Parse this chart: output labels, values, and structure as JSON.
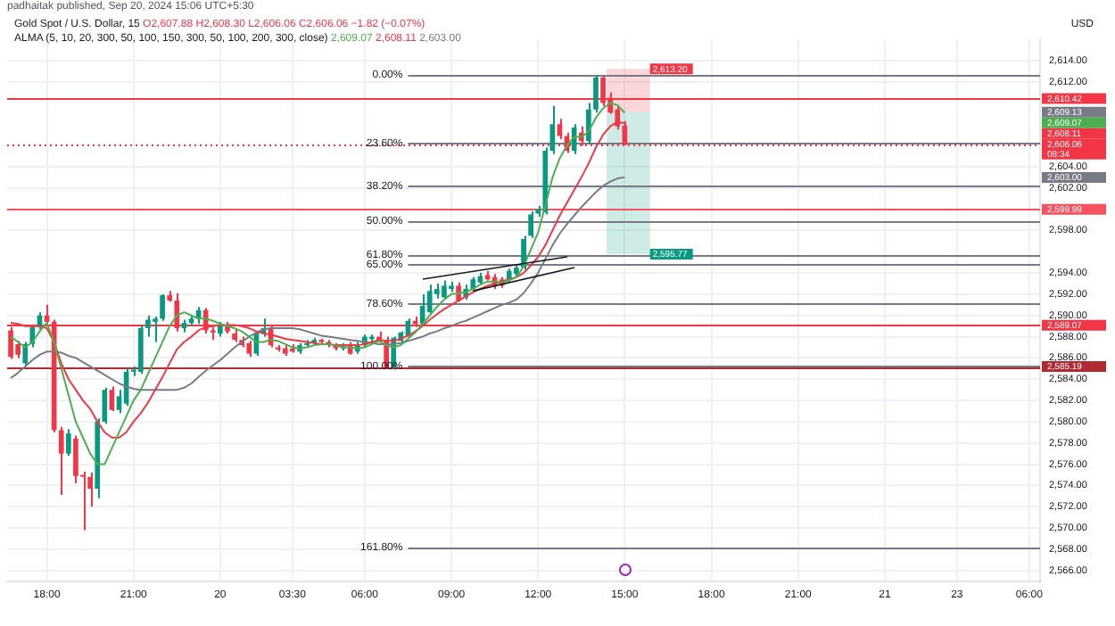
{
  "chart_data": {
    "type": "candlestick",
    "title": "Gold Spot / U.S. Dollar, 15",
    "subtitle": "O2,607.88 H2,608.30 L2,606.06 C2,606.06 −1.82 (−0.07%)",
    "annotations": [
      "padhaitak published, Sep 20, 2024 15:06 UTC+5:30",
      "ALMA (5, 10, 20, 300, 50, 100, 150, 300, 50, 100, 200, 300, close)",
      "USD",
      "2,609.13",
      "0.00%",
      "23.60%",
      "38.20%",
      "50.00%",
      "61.80%",
      "65.00%",
      "78.60%",
      "100.00%",
      "161.80%",
      "2,609.07",
      "2,608.11",
      "2,603.00"
    ],
    "categories": [
      null,
      null,
      null,
      null,
      null,
      "18:00",
      null,
      null,
      null,
      null,
      null,
      null,
      null,
      null,
      null,
      null,
      null,
      "21:00",
      null,
      null,
      null,
      null,
      null,
      null,
      null,
      null,
      null,
      null,
      null,
      "20",
      null,
      null,
      null,
      null,
      null,
      null,
      null,
      null,
      null,
      "03:30",
      null,
      null,
      null,
      null,
      null,
      null,
      null,
      null,
      null,
      "06:00",
      null,
      null,
      null,
      null,
      null,
      null,
      null,
      null,
      null,
      null,
      null,
      "09:00",
      null,
      null,
      null,
      null,
      null,
      null,
      null,
      null,
      null,
      null,
      null,
      "12:00",
      null,
      null,
      null,
      null,
      null,
      null,
      null,
      null,
      null,
      null,
      null,
      "15:00",
      null,
      null,
      null,
      null,
      null,
      null,
      null,
      null,
      null,
      null,
      null,
      "18:00",
      null,
      null,
      null,
      null,
      null,
      null,
      null,
      null,
      null,
      null,
      null,
      "21:00",
      null,
      null,
      null,
      null,
      null,
      null,
      null,
      null,
      null,
      null,
      null,
      "21",
      null,
      null,
      null,
      null,
      null,
      null,
      null,
      null,
      null,
      "23",
      null,
      null,
      null,
      null,
      null,
      null,
      null,
      null,
      null,
      "06:00",
      null
    ],
    "ohlc": [
      [
        2588.6,
        2588.9,
        2585.9,
        2586.1
      ],
      [
        2587.3,
        2587.6,
        2586.0,
        2586.3
      ],
      [
        2585.5,
        2587.5,
        2585.3,
        2587.3
      ],
      [
        2587.3,
        2589.0,
        2587.0,
        2588.9
      ],
      [
        2588.9,
        2590.3,
        2588.7,
        2590.0
      ],
      [
        2590.0,
        2591.0,
        2589.3,
        2589.4
      ],
      [
        2589.4,
        2589.6,
        2579.0,
        2579.2
      ],
      [
        2579.2,
        2579.5,
        2573.1,
        2577.0
      ],
      [
        2577.0,
        2579.3,
        2576.8,
        2578.9
      ],
      [
        2578.4,
        2578.7,
        2574.2,
        2574.9
      ],
      [
        2575.0,
        2575.3,
        2569.8,
        2574.8
      ],
      [
        2574.8,
        2575.2,
        2572.0,
        2573.7
      ],
      [
        2573.7,
        2580.3,
        2572.8,
        2580.0
      ],
      [
        2580.0,
        2583.2,
        2579.8,
        2583.0
      ],
      [
        2583.0,
        2583.3,
        2581.0,
        2581.1
      ],
      [
        2581.1,
        2583.0,
        2580.8,
        2582.4
      ],
      [
        2581.7,
        2585.0,
        2581.5,
        2584.7
      ],
      [
        2584.7,
        2585.2,
        2584.3,
        2584.9
      ],
      [
        2584.7,
        2589.1,
        2584.5,
        2588.8
      ],
      [
        2588.8,
        2590.0,
        2588.0,
        2589.6
      ],
      [
        2589.4,
        2589.9,
        2587.5,
        2589.7
      ],
      [
        2589.7,
        2592.0,
        2589.5,
        2591.9
      ],
      [
        2591.9,
        2592.3,
        2591.3,
        2591.4
      ],
      [
        2591.4,
        2592.1,
        2588.5,
        2588.8
      ],
      [
        2588.8,
        2589.6,
        2588.4,
        2589.3
      ],
      [
        2589.3,
        2589.9,
        2589.0,
        2589.7
      ],
      [
        2589.7,
        2590.8,
        2589.2,
        2590.5
      ],
      [
        2590.5,
        2590.7,
        2588.3,
        2588.6
      ],
      [
        2588.6,
        2588.9,
        2587.7,
        2588.4
      ],
      [
        2588.3,
        2589.4,
        2588.0,
        2589.0
      ],
      [
        2589.0,
        2589.4,
        2588.3,
        2588.5
      ],
      [
        2588.3,
        2588.7,
        2587.5,
        2587.7
      ],
      [
        2587.7,
        2588.0,
        2587.0,
        2587.2
      ],
      [
        2587.4,
        2587.6,
        2586.1,
        2586.4
      ],
      [
        2586.4,
        2588.5,
        2586.2,
        2588.3
      ],
      [
        2588.3,
        2589.7,
        2588.0,
        2588.8
      ],
      [
        2588.8,
        2589.0,
        2587.0,
        2587.2
      ],
      [
        2587.0,
        2587.2,
        2586.6,
        2586.8
      ],
      [
        2586.9,
        2587.2,
        2586.2,
        2586.4
      ],
      [
        2586.9,
        2587.3,
        2586.5,
        2586.6
      ],
      [
        2586.6,
        2587.4,
        2586.4,
        2587.2
      ],
      [
        2587.2,
        2587.7,
        2587.0,
        2587.4
      ],
      [
        2587.4,
        2587.9,
        2587.2,
        2587.7
      ],
      [
        2587.7,
        2587.8,
        2587.3,
        2587.5
      ],
      [
        2587.5,
        2587.7,
        2587.0,
        2587.2
      ],
      [
        2587.2,
        2587.4,
        2586.7,
        2586.9
      ],
      [
        2586.9,
        2587.4,
        2586.7,
        2587.2
      ],
      [
        2587.2,
        2587.5,
        2586.3,
        2586.4
      ],
      [
        2586.6,
        2587.5,
        2586.4,
        2587.2
      ],
      [
        2587.2,
        2588.2,
        2587.0,
        2588.0
      ],
      [
        2587.8,
        2588.2,
        2587.5,
        2588.0
      ],
      [
        2588.0,
        2588.5,
        2587.5,
        2587.7
      ],
      [
        2587.7,
        2588.0,
        2585.0,
        2585.1
      ],
      [
        2585.1,
        2588.0,
        2584.9,
        2587.9
      ],
      [
        2587.6,
        2588.5,
        2587.4,
        2588.4
      ],
      [
        2588.1,
        2589.7,
        2587.9,
        2589.5
      ],
      [
        2589.5,
        2589.9,
        2588.9,
        2589.2
      ],
      [
        2589.2,
        2592.0,
        2589.0,
        2590.9
      ],
      [
        2590.3,
        2592.9,
        2590.1,
        2592.3
      ],
      [
        2592.0,
        2593.0,
        2591.6,
        2592.5
      ],
      [
        2591.7,
        2593.3,
        2591.5,
        2592.8
      ],
      [
        2592.5,
        2593.2,
        2592.2,
        2592.8
      ],
      [
        2592.8,
        2593.1,
        2591.3,
        2591.4
      ],
      [
        2591.7,
        2592.9,
        2591.5,
        2592.5
      ],
      [
        2592.5,
        2593.6,
        2592.2,
        2593.4
      ],
      [
        2593.1,
        2594.0,
        2592.9,
        2593.7
      ],
      [
        2593.8,
        2594.2,
        2593.3,
        2593.4
      ],
      [
        2593.6,
        2593.9,
        2592.5,
        2592.8
      ],
      [
        2593.4,
        2593.6,
        2592.6,
        2592.8
      ],
      [
        2593.4,
        2594.4,
        2593.2,
        2594.2
      ],
      [
        2593.9,
        2594.7,
        2593.7,
        2594.5
      ],
      [
        2594.5,
        2597.5,
        2594.3,
        2597.2
      ],
      [
        2597.5,
        2599.8,
        2597.3,
        2599.5
      ],
      [
        2599.6,
        2600.3,
        2599.3,
        2600.0
      ],
      [
        2599.7,
        2605.8,
        2599.5,
        2605.5
      ],
      [
        2605.5,
        2609.7,
        2605.2,
        2608.0
      ],
      [
        2608.0,
        2608.5,
        2606.6,
        2606.9
      ],
      [
        2606.9,
        2607.2,
        2605.3,
        2605.5
      ],
      [
        2605.5,
        2608.0,
        2605.2,
        2607.7
      ],
      [
        2607.2,
        2607.8,
        2606.0,
        2606.4
      ],
      [
        2606.4,
        2610.0,
        2606.1,
        2609.4
      ],
      [
        2609.4,
        2612.65,
        2609.1,
        2612.4
      ],
      [
        2612.4,
        2612.6,
        2609.7,
        2610.0
      ],
      [
        2610.5,
        2611.0,
        2609.0,
        2609.1
      ],
      [
        2609.4,
        2609.7,
        2607.5,
        2607.8
      ],
      [
        2607.88,
        2608.3,
        2606.06,
        2606.06
      ],
      null,
      null,
      null,
      null,
      null,
      null,
      null,
      null,
      null,
      null,
      null,
      null,
      null,
      null,
      null,
      null,
      null,
      null,
      null,
      null,
      null,
      null,
      null,
      null,
      null,
      null,
      null,
      null,
      null,
      null,
      null,
      null,
      null,
      null,
      null,
      null,
      null,
      null,
      null,
      null,
      null,
      null,
      null,
      null,
      null,
      null,
      null,
      null,
      null,
      null,
      null,
      null,
      null,
      null,
      null,
      null,
      null
    ],
    "colors": [
      "#f23645",
      "#f23645",
      "#089981",
      "#089981",
      "#089981",
      "#f23645",
      "#f23645",
      "#f23645",
      "#089981",
      "#f23645",
      "#f23645",
      "#f23645",
      "#089981",
      "#089981",
      "#f23645",
      "#089981",
      "#089981",
      "#089981",
      "#089981",
      "#089981",
      "#089981",
      "#089981",
      "#f23645",
      "#f23645",
      "#089981",
      "#089981",
      "#089981",
      "#f23645",
      "#f23645",
      "#089981",
      "#f23645",
      "#f23645",
      "#f23645",
      "#f23645",
      "#089981",
      "#089981",
      "#f23645",
      "#f23645",
      "#f23645",
      "#f23645",
      "#089981",
      "#089981",
      "#089981",
      "#f23645",
      "#f23645",
      "#f23645",
      "#089981",
      "#f23645",
      "#089981",
      "#089981",
      "#089981",
      "#f23645",
      "#f23645",
      "#089981",
      "#089981",
      "#089981",
      "#f23645",
      "#089981",
      "#089981",
      "#089981",
      "#089981",
      "#089981",
      "#f23645",
      "#089981",
      "#089981",
      "#089981",
      "#f23645",
      "#f23645",
      "#f23645",
      "#089981",
      "#089981",
      "#089981",
      "#089981",
      "#089981",
      "#089981",
      "#089981",
      "#f23645",
      "#f23645",
      "#089981",
      "#f23645",
      "#089981",
      "#089981",
      "#f23645",
      "#f23645",
      "#f23645",
      "#f23645",
      null,
      null,
      null,
      null,
      null,
      null,
      null,
      null,
      null,
      null,
      null,
      null,
      null,
      null,
      null,
      null,
      null,
      null,
      null,
      null,
      null,
      null,
      null,
      null,
      null,
      null,
      null,
      null,
      null,
      null,
      null,
      null,
      null,
      null,
      null,
      null,
      null,
      null,
      null,
      null,
      null,
      null,
      null,
      null,
      null,
      null,
      null,
      null,
      null,
      null,
      null,
      null,
      null,
      null,
      null,
      null,
      null
    ],
    "series": [
      {
        "type": "line",
        "color": "#4caf50",
        "values": [
          2588.0,
          2587.5,
          2587.0,
          2587.5,
          2588.5,
          2589.3,
          2587.5,
          2585.0,
          2582.5,
          2580.0,
          2578.5,
          2577.0,
          2576.0,
          2576.0,
          2577.5,
          2579.0,
          2580.5,
          2582.0,
          2583.0,
          2584.5,
          2586.0,
          2587.5,
          2589.0,
          2590.0,
          2590.3,
          2590.0,
          2589.7,
          2589.7,
          2589.5,
          2589.2,
          2589.0,
          2588.8,
          2588.5,
          2588.0,
          2587.5,
          2587.5,
          2587.7,
          2587.6,
          2587.3,
          2587.0,
          2586.9,
          2587.0,
          2587.2,
          2587.3,
          2587.3,
          2587.2,
          2587.0,
          2587.0,
          2586.9,
          2587.0,
          2587.3,
          2587.6,
          2587.2,
          2587.0,
          2587.2,
          2587.8,
          2588.4,
          2589.2,
          2590.0,
          2590.8,
          2591.5,
          2592.0,
          2592.1,
          2592.2,
          2592.5,
          2592.9,
          2593.2,
          2593.2,
          2593.1,
          2593.3,
          2593.6,
          2594.6,
          2596.2,
          2597.8,
          2600.3,
          2603.0,
          2604.8,
          2606.0,
          2606.8,
          2606.8,
          2607.3,
          2608.6,
          2609.5,
          2610.0,
          2609.8,
          2609.07,
          null,
          null,
          null,
          null,
          null,
          null,
          null,
          null,
          null,
          null,
          null,
          null,
          null,
          null,
          null,
          null,
          null,
          null,
          null,
          null,
          null,
          null,
          null,
          null,
          null,
          null,
          null,
          null,
          null,
          null,
          null,
          null,
          null,
          null,
          null,
          null,
          null,
          null,
          null,
          null,
          null,
          null,
          null,
          null,
          null,
          null,
          null,
          null,
          null,
          null,
          null,
          null,
          null,
          null,
          null,
          null,
          null
        ]
      },
      {
        "type": "line",
        "color": "#f23645",
        "values": [
          2589.3,
          2589.2,
          2589.0,
          2589.0,
          2589.0,
          2588.8,
          2587.5,
          2585.5,
          2584.0,
          2583.0,
          2582.0,
          2581.2,
          2580.0,
          2579.0,
          2578.5,
          2578.5,
          2579.0,
          2580.0,
          2580.8,
          2581.8,
          2583.0,
          2584.2,
          2585.5,
          2586.8,
          2587.5,
          2588.0,
          2588.6,
          2588.9,
          2589.0,
          2589.1,
          2589.1,
          2589.1,
          2589.0,
          2588.8,
          2588.5,
          2588.3,
          2588.2,
          2588.0,
          2587.8,
          2587.7,
          2587.6,
          2587.5,
          2587.4,
          2587.3,
          2587.3,
          2587.2,
          2587.2,
          2587.2,
          2587.2,
          2587.3,
          2587.5,
          2587.7,
          2587.6,
          2587.6,
          2587.8,
          2588.1,
          2588.5,
          2589.0,
          2589.6,
          2590.1,
          2590.6,
          2591.0,
          2591.4,
          2591.8,
          2592.2,
          2592.5,
          2592.8,
          2593.0,
          2593.2,
          2593.4,
          2593.6,
          2594.0,
          2594.7,
          2595.5,
          2596.6,
          2598.0,
          2599.4,
          2600.6,
          2601.8,
          2603.0,
          2604.3,
          2605.8,
          2607.0,
          2607.8,
          2608.2,
          2608.11,
          null,
          null,
          null,
          null,
          null,
          null,
          null,
          null,
          null,
          null,
          null,
          null,
          null,
          null,
          null,
          null,
          null,
          null,
          null,
          null,
          null,
          null,
          null,
          null,
          null,
          null,
          null,
          null,
          null,
          null,
          null,
          null,
          null,
          null,
          null,
          null,
          null,
          null,
          null,
          null,
          null,
          null,
          null,
          null,
          null,
          null,
          null,
          null,
          null,
          null,
          null,
          null,
          null,
          null,
          null,
          null,
          null
        ]
      },
      {
        "type": "line",
        "color": "#787b86",
        "values": [
          2584.1,
          2584.6,
          2585.2,
          2585.8,
          2586.3,
          2586.6,
          2586.6,
          2586.5,
          2586.2,
          2586.0,
          2585.6,
          2585.2,
          2584.8,
          2584.4,
          2584.0,
          2583.6,
          2583.3,
          2583.1,
          2583.0,
          2583.0,
          2583.0,
          2583.0,
          2583.0,
          2583.0,
          2583.2,
          2583.6,
          2584.2,
          2584.8,
          2585.3,
          2585.8,
          2586.4,
          2587.0,
          2587.5,
          2588.0,
          2588.4,
          2588.7,
          2588.8,
          2588.8,
          2588.8,
          2588.8,
          2588.7,
          2588.5,
          2588.3,
          2588.1,
          2588.0,
          2587.9,
          2587.8,
          2587.7,
          2587.6,
          2587.5,
          2587.4,
          2587.3,
          2587.3,
          2587.3,
          2587.4,
          2587.6,
          2587.8,
          2588.0,
          2588.3,
          2588.5,
          2588.8,
          2589.0,
          2589.3,
          2589.5,
          2589.8,
          2590.1,
          2590.4,
          2590.7,
          2591.0,
          2591.2,
          2591.5,
          2592.1,
          2593.0,
          2594.0,
          2595.3,
          2596.6,
          2597.7,
          2598.6,
          2599.4,
          2600.2,
          2600.9,
          2601.6,
          2602.2,
          2602.6,
          2602.9,
          2603.0,
          null,
          null,
          null,
          null,
          null,
          null,
          null,
          null,
          null,
          null,
          null,
          null,
          null,
          null,
          null,
          null,
          null,
          null,
          null,
          null,
          null,
          null,
          null,
          null,
          null,
          null,
          null,
          null,
          null,
          null,
          null,
          null,
          null,
          null,
          null,
          null,
          null,
          null,
          null,
          null,
          null,
          null,
          null,
          null,
          null,
          null,
          null,
          null,
          null,
          null,
          null,
          null,
          null,
          null,
          null,
          null,
          null
        ]
      }
    ],
    "ylim": [
      2565,
      2616
    ],
    "yticks": [
      {
        "value": 2566,
        "label": "2,566.00"
      },
      {
        "value": 2568,
        "label": "2,568.00"
      },
      {
        "value": 2570,
        "label": "2,570.00"
      },
      {
        "value": 2572,
        "label": "2,572.00"
      },
      {
        "value": 2574,
        "label": "2,574.00"
      },
      {
        "value": 2576,
        "label": "2,576.00"
      },
      {
        "value": 2578,
        "label": "2,578.00"
      },
      {
        "value": 2580,
        "label": "2,580.00"
      },
      {
        "value": 2582,
        "label": "2,582.00"
      },
      {
        "value": 2584,
        "label": "2,584.00"
      },
      {
        "value": 2586,
        "label": "2,586.00"
      },
      {
        "value": 2588,
        "label": "2,588.00"
      },
      {
        "value": 2590,
        "label": "2,590.00"
      },
      {
        "value": 2592,
        "label": "2,592.00"
      },
      {
        "value": 2594,
        "label": "2,594.00"
      },
      {
        "value": 2598,
        "label": "2,598.00"
      },
      {
        "value": 2602,
        "label": "2,602.00"
      },
      {
        "value": 2604,
        "label": "2,604.00"
      },
      {
        "value": 2612,
        "label": "2,612.00"
      },
      {
        "value": 2614,
        "label": "2,614.00"
      }
    ],
    "ref_lines": [
      {
        "axis": "y",
        "value": 2612.7,
        "color": "#787b86"
      },
      {
        "axis": "y",
        "value": 2606.2,
        "color": "#787b86"
      },
      {
        "axis": "y",
        "value": 2602.2,
        "color": "#787b86"
      },
      {
        "axis": "y",
        "value": 2598.9,
        "color": "#787b86"
      },
      {
        "axis": "y",
        "value": 2595.7,
        "color": "#787b86"
      },
      {
        "axis": "y",
        "value": 2594.8,
        "color": "#787b86"
      },
      {
        "axis": "y",
        "value": 2591.1,
        "color": "#787b86"
      },
      {
        "axis": "y",
        "value": 2585.2,
        "color": "#787b86"
      },
      {
        "axis": "y",
        "value": 2568.2,
        "color": "#787b86"
      },
      {
        "axis": "y",
        "value": 2610.42,
        "label": "2,610.42",
        "color": "#f23645",
        "line_style": "solid"
      },
      {
        "axis": "y",
        "value": 2606.06,
        "label": "2,606.06\n08:34",
        "color": "#f23645",
        "line_style": "dotted"
      },
      {
        "axis": "y",
        "value": 2599.99,
        "label": "2,599.99",
        "color": "#f7525f",
        "line_style": "solid"
      },
      {
        "axis": "y",
        "value": 2589.07,
        "label": "2,589.07",
        "color": "#f23645",
        "line_style": "solid"
      },
      {
        "axis": "y",
        "value": 2585.19,
        "label": "2,585.19",
        "color": "#b22833",
        "line_style": "solid"
      }
    ],
    "bands": [
      {
        "axis": "y",
        "from": 2609.13,
        "to": 2613.2,
        "label": "2,613.20",
        "color": "#f23645"
      },
      {
        "axis": "y",
        "from": 2609.13,
        "to": 2595.77,
        "label": "2,595.77",
        "color": "#089981"
      }
    ],
    "grid": true
  }
}
